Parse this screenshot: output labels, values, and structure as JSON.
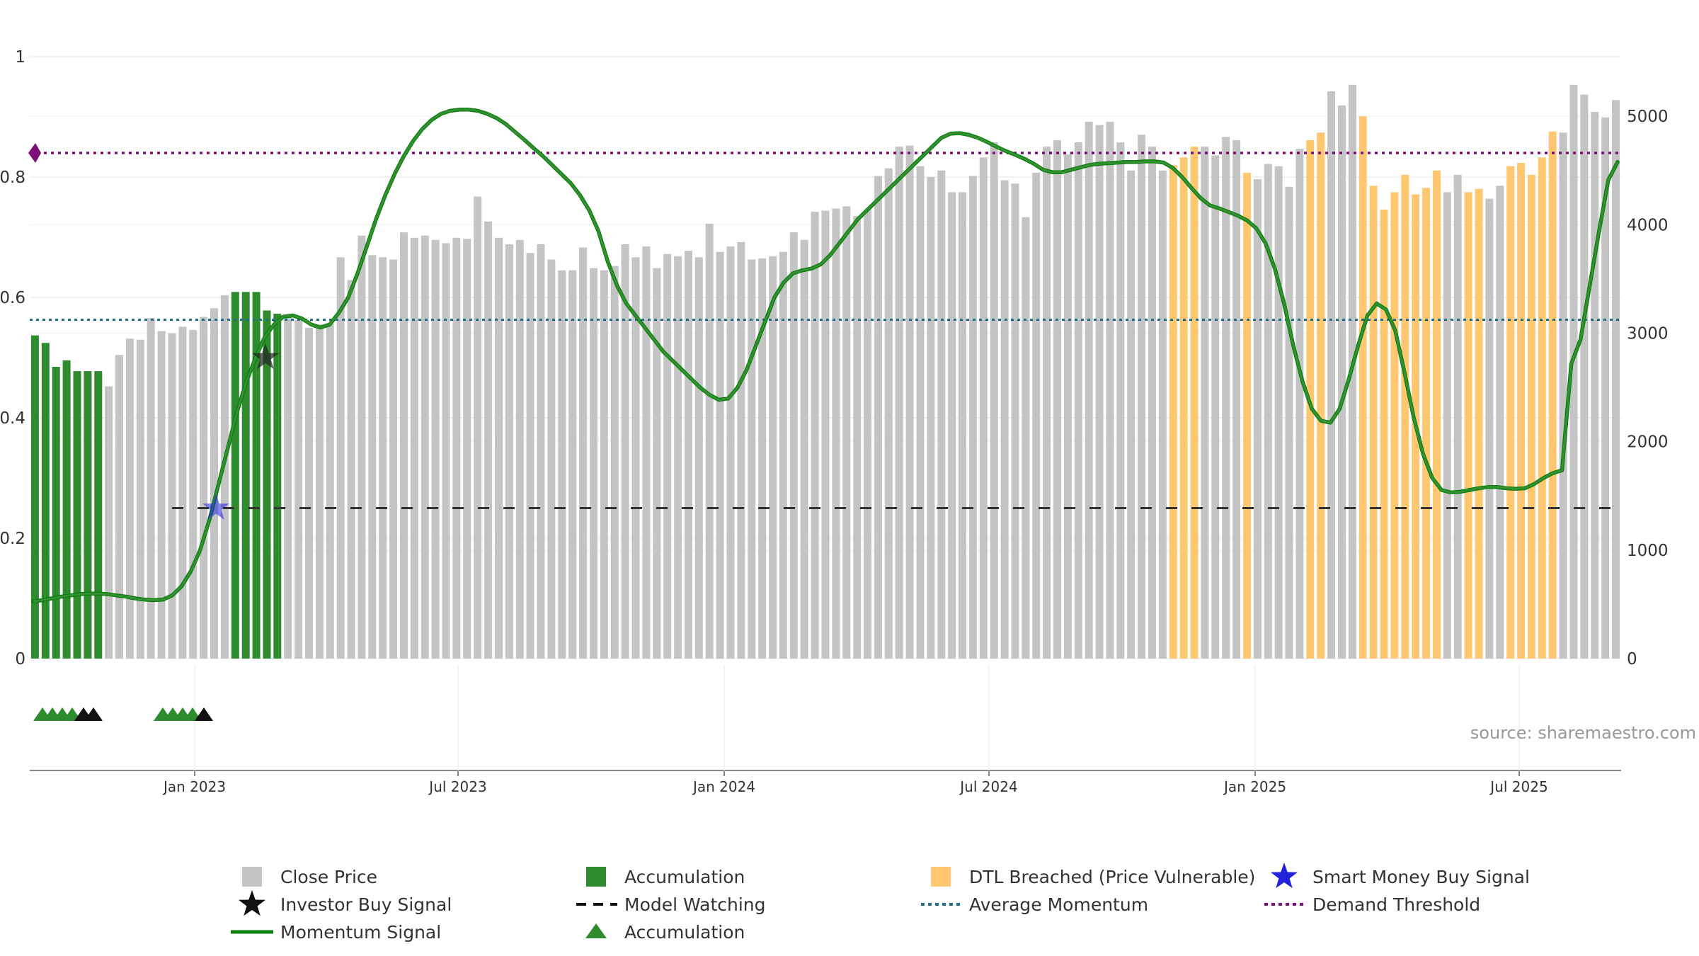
{
  "chart_data": {
    "type": "bar",
    "x_ticks": [
      "Jan 2023",
      "Jul 2023",
      "Jan 2024",
      "Jul 2024",
      "Jan 2025",
      "Jul 2025"
    ],
    "left_axis": {
      "ticks": [
        "0",
        "0.2",
        "0.4",
        "0.6",
        "0.8",
        "1"
      ],
      "ylim": [
        0,
        1
      ]
    },
    "right_axis": {
      "ticks": [
        "0",
        "1000",
        "2000",
        "3000",
        "4000",
        "5000"
      ],
      "ylim": [
        0,
        5550
      ]
    },
    "colors": {
      "close": "#c4c4c4",
      "accumulation": "#2e8b2e",
      "dtl": "#ffc870",
      "momentum": "#0a800a",
      "momentum_light": "#5a9a5a",
      "average": "#1f6e8c",
      "demand": "#7a0f7a",
      "watching": "#333333",
      "smart_money": "#2222dd",
      "investor": "#222222"
    },
    "bar_states": "AAAAAAACCCCCCCCCCCCAAAAACCCCCCCCCCCCCCCCCCCCCCCCCCCCCCCCCCCCCCCCCCCCCCCCCCCCCCCCCCCCCCCCCCCCCCCCCCCCCCCCCCCCDDDCCCCDCCCCCDDCCCDDDDDDDDCCDDCCDDDDDCCCCCCCDDDDDDDCCCCCCCCCCCCCCCCDDDDDDDD",
    "close_prices": [
      2980,
      2910,
      2690,
      2750,
      2650,
      2650,
      2650,
      2510,
      2800,
      2950,
      2940,
      3140,
      3020,
      3000,
      3060,
      3030,
      3150,
      3230,
      3350,
      3380,
      3380,
      3380,
      3210,
      3180,
      3160,
      3120,
      3050,
      3080,
      3090,
      3700,
      3490,
      3900,
      3720,
      3700,
      3680,
      3930,
      3880,
      3900,
      3860,
      3830,
      3880,
      3870,
      4260,
      4030,
      3880,
      3820,
      3860,
      3740,
      3820,
      3680,
      3580,
      3580,
      3790,
      3600,
      3580,
      3620,
      3820,
      3700,
      3800,
      3600,
      3730,
      3710,
      3760,
      3700,
      4010,
      3750,
      3800,
      3840,
      3680,
      3690,
      3710,
      3750,
      3930,
      3860,
      4120,
      4130,
      4150,
      4170,
      4080,
      4140,
      4450,
      4520,
      4720,
      4730,
      4540,
      4440,
      4500,
      4300,
      4300,
      4450,
      4620,
      4760,
      4410,
      4380,
      4070,
      4480,
      4720,
      4780,
      4650,
      4760,
      4950,
      4920,
      4950,
      4760,
      4500,
      4830,
      4720,
      4500,
      4550,
      4620,
      4720,
      4720,
      4640,
      4810,
      4780,
      4480,
      4420,
      4560,
      4540,
      4350,
      4700,
      4780,
      4850,
      5230,
      5100,
      5290,
      5000,
      4360,
      4140,
      4300,
      4460,
      4280,
      4340,
      4500,
      4300,
      4460,
      4300,
      4330,
      4240,
      4360,
      4540,
      4570,
      4460,
      4620,
      4860,
      4850,
      5290,
      5200,
      5040,
      4990,
      5150
    ],
    "momentum": [
      0.095,
      0.097,
      0.1,
      0.103,
      0.105,
      0.107,
      0.108,
      0.108,
      0.107,
      0.105,
      0.103,
      0.1,
      0.098,
      0.097,
      0.098,
      0.105,
      0.12,
      0.145,
      0.18,
      0.23,
      0.29,
      0.35,
      0.41,
      0.46,
      0.5,
      0.535,
      0.555,
      0.568,
      0.57,
      0.565,
      0.555,
      0.55,
      0.555,
      0.575,
      0.6,
      0.64,
      0.685,
      0.73,
      0.77,
      0.805,
      0.835,
      0.86,
      0.88,
      0.895,
      0.905,
      0.91,
      0.912,
      0.912,
      0.91,
      0.905,
      0.898,
      0.888,
      0.875,
      0.862,
      0.848,
      0.835,
      0.82,
      0.805,
      0.79,
      0.77,
      0.745,
      0.71,
      0.66,
      0.62,
      0.59,
      0.57,
      0.55,
      0.53,
      0.51,
      0.495,
      0.48,
      0.465,
      0.45,
      0.438,
      0.43,
      0.432,
      0.45,
      0.48,
      0.52,
      0.56,
      0.6,
      0.625,
      0.64,
      0.645,
      0.648,
      0.655,
      0.67,
      0.69,
      0.71,
      0.73,
      0.745,
      0.76,
      0.775,
      0.79,
      0.805,
      0.82,
      0.835,
      0.85,
      0.865,
      0.872,
      0.873,
      0.87,
      0.865,
      0.858,
      0.85,
      0.843,
      0.837,
      0.83,
      0.822,
      0.812,
      0.808,
      0.808,
      0.812,
      0.816,
      0.82,
      0.822,
      0.823,
      0.824,
      0.825,
      0.825,
      0.826,
      0.826,
      0.824,
      0.815,
      0.8,
      0.782,
      0.765,
      0.753,
      0.748,
      0.742,
      0.736,
      0.728,
      0.715,
      0.69,
      0.648,
      0.59,
      0.52,
      0.46,
      0.415,
      0.395,
      0.392,
      0.415,
      0.465,
      0.52,
      0.57,
      0.59,
      0.58,
      0.545,
      0.475,
      0.4,
      0.34,
      0.3,
      0.28,
      0.276,
      0.277,
      0.28,
      0.283,
      0.285,
      0.285,
      0.283,
      0.282,
      0.283,
      0.29,
      0.3,
      0.308,
      0.313,
      0.49,
      0.53,
      0.62,
      0.71,
      0.795,
      0.825
    ],
    "average_momentum": 0.563,
    "demand_threshold": 0.84,
    "model_watching": 0.25,
    "smart_money_signal": {
      "date": "Jan 2023",
      "value": 0.25
    },
    "investor_signal": {
      "date": "Feb 2023",
      "value": 0.5
    },
    "signal_markers": {
      "green": [
        0,
        1,
        2,
        3,
        12,
        13,
        14,
        15
      ],
      "black": [
        4,
        5,
        16
      ]
    },
    "legend": [
      {
        "key": "close",
        "label": "Close Price"
      },
      {
        "key": "accumulation",
        "label": "Accumulation"
      },
      {
        "key": "dtl",
        "label": "DTL Breached (Price Vulnerable)"
      },
      {
        "key": "smart_money",
        "label": "Smart Money Buy Signal"
      },
      {
        "key": "investor",
        "label": "Investor Buy Signal"
      },
      {
        "key": "watching",
        "label": "Model Watching"
      },
      {
        "key": "average",
        "label": "Average Momentum"
      },
      {
        "key": "demand",
        "label": "Demand Threshold"
      },
      {
        "key": "momentum",
        "label": "Momentum Signal"
      },
      {
        "key": "triangle",
        "label": "Accumulation"
      }
    ],
    "source": "source: sharemaestro.com"
  }
}
